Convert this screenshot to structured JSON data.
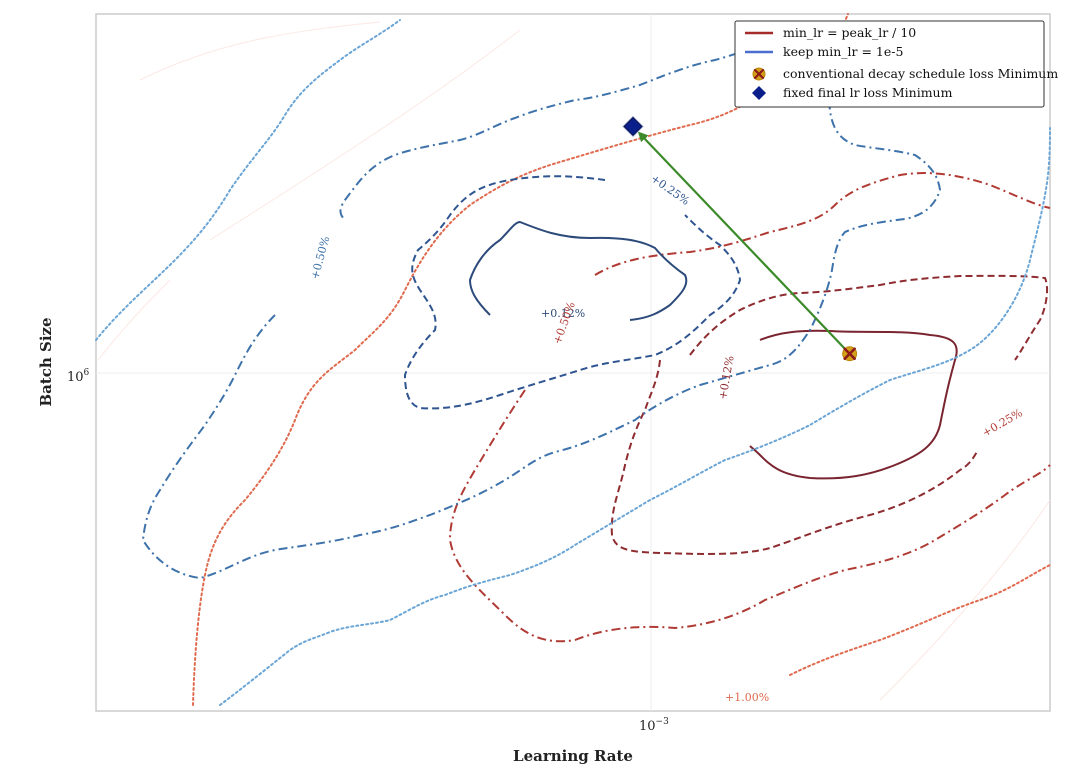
{
  "chart_data": {
    "type": "contour",
    "title": "",
    "xlabel": "Learning Rate",
    "ylabel": "Batch Size",
    "xscale": "log",
    "yscale": "log",
    "x_ticks": [
      {
        "base": "10",
        "exp": "−3"
      }
    ],
    "y_ticks": [
      {
        "base": "10",
        "exp": "6"
      }
    ],
    "grid": true,
    "legend_position": "top-right",
    "legend": [
      {
        "label": "min_lr = peak_lr / 10",
        "kind": "line",
        "color": "#a52a2a"
      },
      {
        "label": "keep min_lr = 1e-5",
        "kind": "line",
        "color": "#4a6fd1"
      },
      {
        "label": "conventional decay schedule loss Minimum",
        "kind": "marker-x",
        "color": "#d4a017"
      },
      {
        "label": "fixed final lr loss Minimum",
        "kind": "marker-diamond",
        "color": "#0b1f8a"
      }
    ],
    "contour_labels": {
      "blue": [
        "+0.12%",
        "+0.25%",
        "+0.50%"
      ],
      "red": [
        "+0.12%",
        "+0.25%",
        "+0.50%",
        "+1.00%"
      ]
    },
    "minima": {
      "conventional_decay": {
        "lr": 0.00125,
        "batch_size": 1030000
      },
      "fixed_final_lr": {
        "lr": 0.00098,
        "batch_size": 1460000
      }
    },
    "colors": {
      "red_012": "#7a2530",
      "red_025": "#8e2c30",
      "red_050": "#b03a34",
      "red_100": "#e06a4e",
      "blue_012": "#2c4a7a",
      "blue_025": "#2f5590",
      "blue_050": "#3d72aa",
      "blue_100": "#6aa5d6",
      "arrow": "#3c8a2a"
    }
  }
}
